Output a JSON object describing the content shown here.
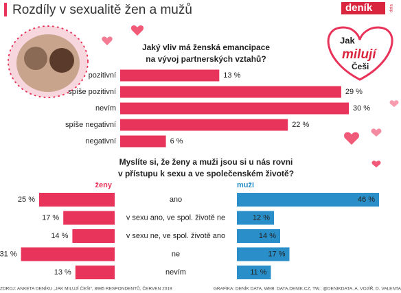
{
  "title": "Rozdíly v sexualitě žen a mužů",
  "logo": {
    "brand": "deník",
    "sub": "data",
    "heading": [
      "Jak",
      "milují",
      "Češi"
    ]
  },
  "chart_data": [
    {
      "type": "bar",
      "orientation": "horizontal",
      "color": "#e8335a",
      "title": [
        "Jaký vliv má ženská emancipace",
        "na vývoj partnerských vztahů?"
      ],
      "categories": [
        "pozitivní",
        "spíše pozitivní",
        "nevím",
        "spíše negativní",
        "negativní"
      ],
      "values": [
        13,
        29,
        30,
        22,
        6
      ],
      "value_labels": [
        "13 %",
        "29 %",
        "30 %",
        "22 %",
        "6 %"
      ]
    },
    {
      "type": "butterfly",
      "title": [
        "Myslíte si, že ženy a muži jsou si u nás rovni",
        "v přístupu k sexu a ve společenském životě?"
      ],
      "categories": [
        "ano",
        "v sexu ano, ve spol. životě ne",
        "v sexu ne, ve spol. životě ano",
        "ne",
        "nevím"
      ],
      "series": [
        {
          "name": "ženy",
          "color": "#e8335a",
          "values": [
            25,
            17,
            14,
            31,
            13
          ],
          "value_labels": [
            "25 %",
            "17 %",
            "14 %",
            "31 %",
            "13 %"
          ]
        },
        {
          "name": "muži",
          "color": "#2a8fc9",
          "values": [
            46,
            12,
            14,
            17,
            11
          ],
          "value_labels": [
            "46 %",
            "12 %",
            "14 %",
            "17 %",
            "11 %"
          ]
        }
      ]
    }
  ],
  "source": "ZDROJ: ANKETA DENÍKU „JAK MILUJÍ ČEŠI\", 8985 RESPONDENTŮ, ČERVEN 2019",
  "credits": "GRAFIKA: DENÍK DATA, WEB: DATA.DENIK.CZ, TW.: @DENIKDATA, A. VOJÍŘ, D. VALENTA"
}
